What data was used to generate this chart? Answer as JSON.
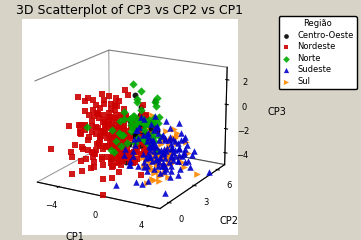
{
  "title": "3D Scatterplot of CP3 vs CP2 vs CP1",
  "xlabel": "CP1",
  "ylabel": "CP2",
  "zlabel": "CP3",
  "background_color": "#d8d3c7",
  "pane_color": "#ffffff",
  "regions": {
    "Centro-Oeste": {
      "color": "#000000",
      "marker": "o",
      "size": 18
    },
    "Nordeste": {
      "color": "#cc0000",
      "marker": "s",
      "size": 20
    },
    "Norte": {
      "color": "#00aa00",
      "marker": "D",
      "size": 18
    },
    "Sudeste": {
      "color": "#0000cc",
      "marker": "^",
      "size": 22
    },
    "Sul": {
      "color": "#ff8800",
      "marker": ">",
      "size": 22
    }
  },
  "xlim": [
    -6,
    5
  ],
  "ylim": [
    -1,
    7
  ],
  "zlim": [
    -5,
    3
  ],
  "n_points": {
    "Centro-Oeste": 40,
    "Nordeste": 220,
    "Norte": 55,
    "Sudeste": 130,
    "Sul": 90
  },
  "seeds": {
    "Centro-Oeste": 10,
    "Nordeste": 20,
    "Norte": 30,
    "Sudeste": 40,
    "Sul": 50
  },
  "means": {
    "Centro-Oeste": [
      0.5,
      2.0,
      -1.0
    ],
    "Nordeste": [
      -1.2,
      1.5,
      -1.5
    ],
    "Norte": [
      1.0,
      1.8,
      -0.5
    ],
    "Sudeste": [
      2.5,
      2.5,
      -2.5
    ],
    "Sul": [
      2.0,
      3.0,
      -3.0
    ]
  },
  "stds": {
    "Centro-Oeste": [
      1.0,
      0.8,
      1.2
    ],
    "Nordeste": [
      1.5,
      1.0,
      1.5
    ],
    "Norte": [
      1.0,
      0.8,
      1.2
    ],
    "Sudeste": [
      1.3,
      1.0,
      1.2
    ],
    "Sul": [
      1.0,
      0.8,
      1.0
    ]
  },
  "legend_title": "Região",
  "xticks": [
    -4,
    0,
    4
  ],
  "yticks": [
    0,
    3,
    6
  ],
  "zticks": [
    -4,
    -2,
    0,
    2
  ],
  "elev": 18,
  "azim": -60,
  "title_fontsize": 9,
  "label_fontsize": 7,
  "tick_fontsize": 6,
  "legend_fontsize": 6
}
